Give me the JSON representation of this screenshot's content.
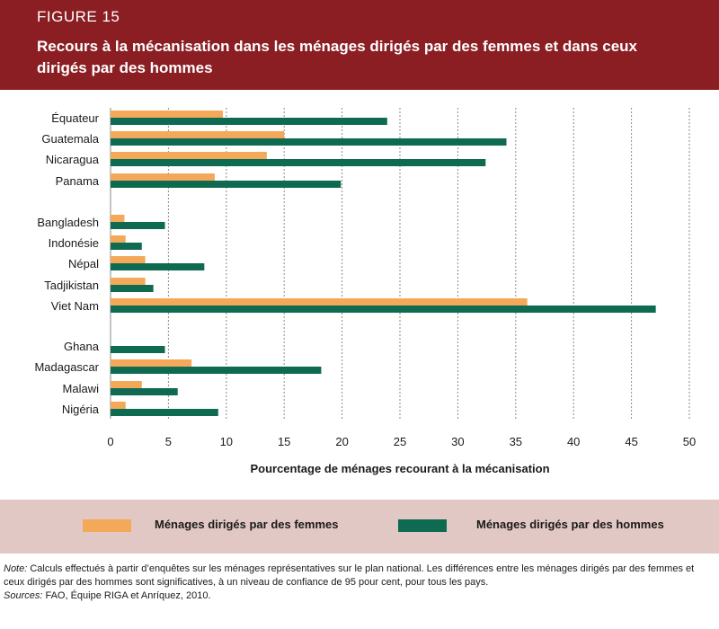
{
  "figure": {
    "label": "FIGURE 15",
    "title": "Recours à la mécanisation dans les ménages dirigés par des femmes et dans ceux dirigés par des hommes"
  },
  "colors": {
    "header_bg": "#8b1e22",
    "legend_bg": "#e2c8c4",
    "women": "#f4a95a",
    "men": "#0e6b52"
  },
  "chart_data": {
    "type": "bar",
    "orientation": "horizontal",
    "categories": [
      "Équateur",
      "Guatemala",
      "Nicaragua",
      "Panama",
      "Bangladesh",
      "Indonésie",
      "Népal",
      "Tadjikistan",
      "Viet Nam",
      "Ghana",
      "Madagascar",
      "Malawi",
      "Nigéria"
    ],
    "groups": [
      [
        "Équateur",
        "Guatemala",
        "Nicaragua",
        "Panama"
      ],
      [
        "Bangladesh",
        "Indonésie",
        "Népal",
        "Tadjikistan",
        "Viet Nam"
      ],
      [
        "Ghana",
        "Madagascar",
        "Malawi",
        "Nigéria"
      ]
    ],
    "series": [
      {
        "name": "Ménages dirigés par des femmes",
        "color": "#f4a95a",
        "values": [
          9.7,
          15.0,
          13.5,
          9.0,
          1.2,
          1.3,
          3.0,
          3.0,
          36.0,
          0.0,
          7.0,
          2.7,
          1.3
        ]
      },
      {
        "name": "Ménages dirigés par des hommes",
        "color": "#0e6b52",
        "values": [
          23.9,
          34.2,
          32.4,
          19.9,
          4.7,
          2.7,
          8.1,
          3.7,
          47.1,
          4.7,
          18.2,
          5.8,
          9.3
        ]
      }
    ],
    "xlabel": "Pourcentage de ménages recourant à la mécanisation",
    "ylabel": "",
    "xlim": [
      0,
      50
    ],
    "xticks": [
      0,
      5,
      10,
      15,
      20,
      25,
      30,
      35,
      40,
      45,
      50
    ],
    "grid": "vertical-dashed",
    "legend_position": "bottom"
  },
  "legend": {
    "women_label": "Ménages dirigés par des femmes",
    "men_label": "Ménages dirigés par des hommes"
  },
  "notes": {
    "note_label": "Note:",
    "note_text": " Calculs effectués à partir d’enquêtes sur les ménages représentatives sur le plan national. Les différences entre les ménages dirigés par des femmes et ceux dirigés par des hommes sont significatives, à un niveau de confiance de 95 pour cent, pour tous les pays.",
    "sources_label": "Sources:",
    "sources_text": " FAO, Équipe RIGA et Anríquez, 2010."
  }
}
